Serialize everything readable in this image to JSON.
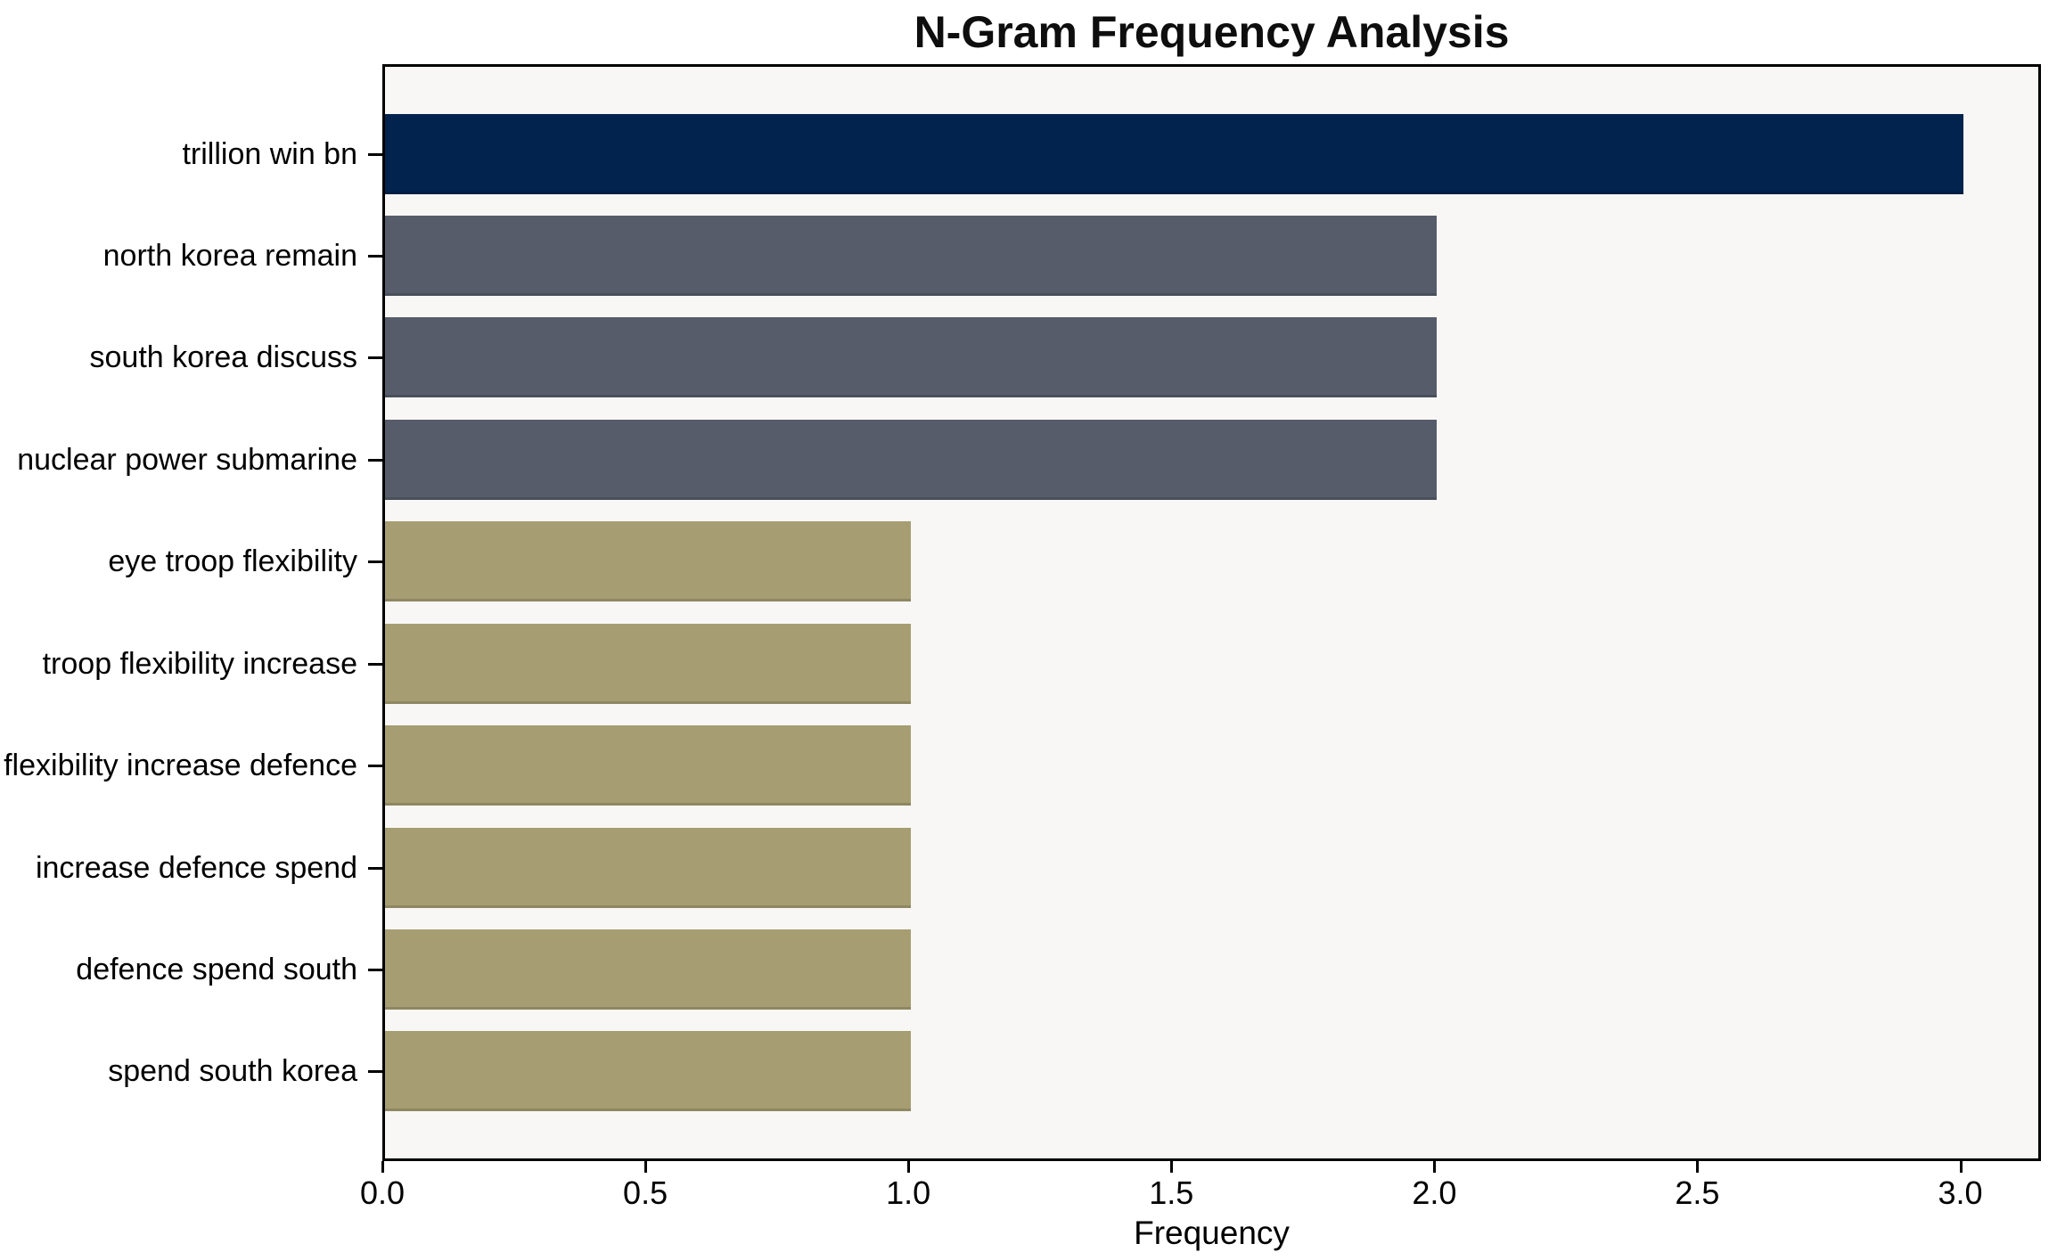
{
  "chart_data": {
    "type": "bar",
    "orientation": "horizontal",
    "title": "N-Gram Frequency Analysis",
    "xlabel": "Frequency",
    "ylabel": "",
    "categories": [
      "trillion win bn",
      "north korea remain",
      "south korea discuss",
      "nuclear power submarine",
      "eye troop flexibility",
      "troop flexibility increase",
      "flexibility increase defence",
      "increase defence spend",
      "defence spend south",
      "spend south korea"
    ],
    "values": [
      3,
      2,
      2,
      2,
      1,
      1,
      1,
      1,
      1,
      1
    ],
    "bar_colors": [
      "#02234d",
      "#565c6a",
      "#565c6a",
      "#565c6a",
      "#a69e72",
      "#a69e72",
      "#a69e72",
      "#a69e72",
      "#a69e72",
      "#a69e72"
    ],
    "color_legend": {
      "frequency_3": "#02234d",
      "frequency_2": "#565c6a",
      "frequency_1": "#a69e72"
    },
    "xticks": [
      0.0,
      0.5,
      1.0,
      1.5,
      2.0,
      2.5,
      3.0
    ],
    "xtick_labels": [
      "0.0",
      "0.5",
      "1.0",
      "1.5",
      "2.0",
      "2.5",
      "3.0"
    ],
    "xlim": [
      0,
      3.1533
    ],
    "grid": false,
    "legend_position": "none",
    "plot_bg": "#f8f7f5",
    "figure_bg": "#ffffff",
    "spine_color": "#000000"
  }
}
